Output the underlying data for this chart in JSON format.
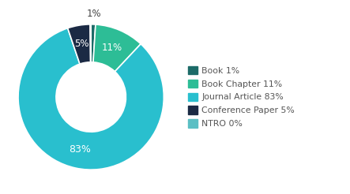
{
  "labels": [
    "Book",
    "Book Chapter",
    "Journal Article",
    "Conference Paper",
    "NTRO"
  ],
  "values": [
    1,
    11,
    83,
    5,
    0
  ],
  "colors": [
    "#1c6b68",
    "#2dbd96",
    "#29bfce",
    "#1b2a44",
    "#5bbfc4"
  ],
  "pct_labels": [
    "1%",
    "11%",
    "83%",
    "5%",
    ""
  ],
  "legend_labels": [
    "Book 1%",
    "Book Chapter 11%",
    "Journal Article 83%",
    "Conference Paper 5%",
    "NTRO 0%"
  ],
  "text_color": "#555555",
  "background_color": "#ffffff",
  "startangle": 90
}
